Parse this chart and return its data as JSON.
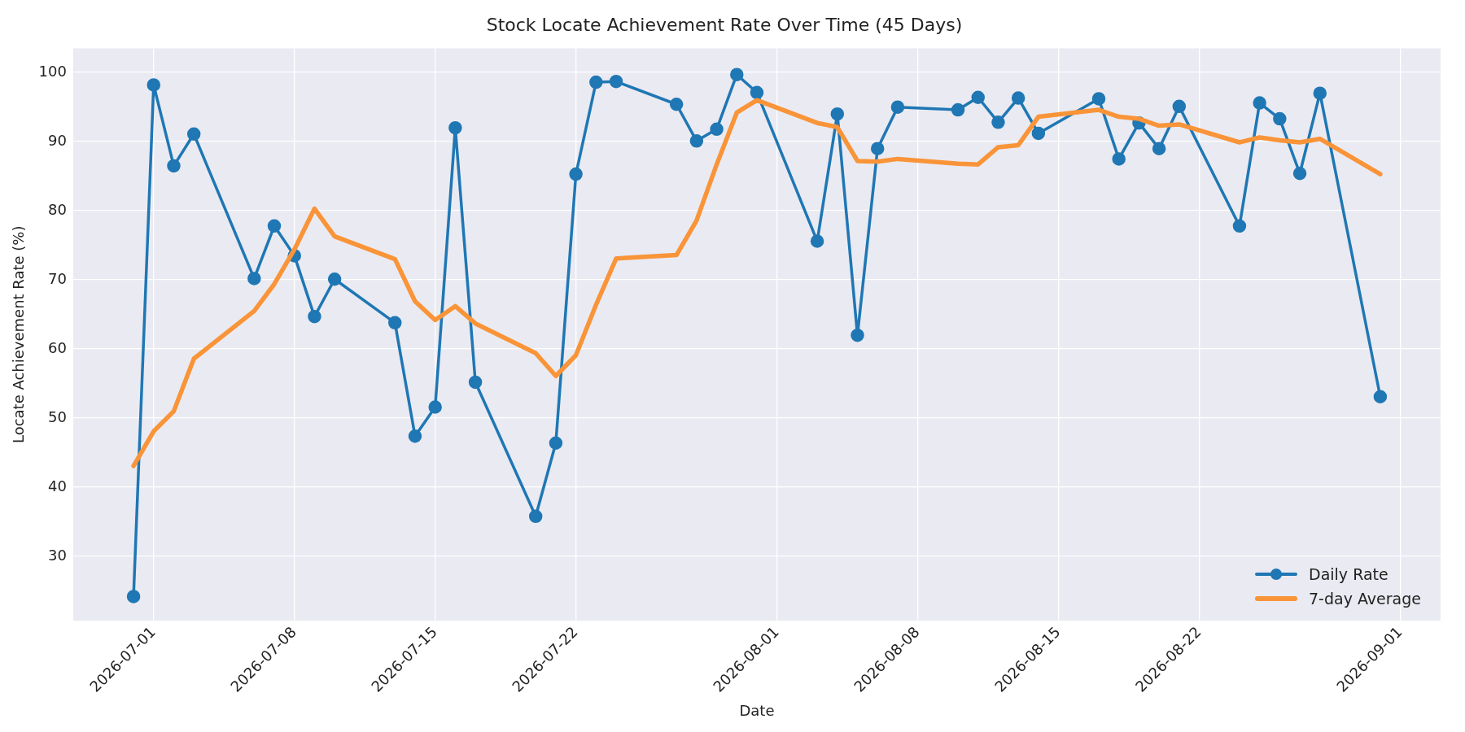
{
  "chart_data": {
    "type": "line",
    "title": "Stock Locate Achievement Rate Over Time (45 Days)",
    "xlabel": "Date",
    "ylabel": "Locate Achievement Rate (%)",
    "x": [
      "2026-06-30",
      "2026-07-01",
      "2026-07-02",
      "2026-07-03",
      "2026-07-06",
      "2026-07-07",
      "2026-07-08",
      "2026-07-09",
      "2026-07-10",
      "2026-07-13",
      "2026-07-14",
      "2026-07-15",
      "2026-07-16",
      "2026-07-17",
      "2026-07-20",
      "2026-07-21",
      "2026-07-22",
      "2026-07-23",
      "2026-07-24",
      "2026-07-27",
      "2026-07-28",
      "2026-07-29",
      "2026-07-30",
      "2026-07-31",
      "2026-08-03",
      "2026-08-04",
      "2026-08-05",
      "2026-08-06",
      "2026-08-07",
      "2026-08-10",
      "2026-08-11",
      "2026-08-12",
      "2026-08-13",
      "2026-08-14",
      "2026-08-17",
      "2026-08-18",
      "2026-08-19",
      "2026-08-20",
      "2026-08-21",
      "2026-08-24",
      "2026-08-25",
      "2026-08-26",
      "2026-08-27",
      "2026-08-28",
      "2026-08-31"
    ],
    "series": [
      {
        "name": "Daily Rate",
        "color": "#1f77b4",
        "marker": "circle",
        "values": [
          24.2,
          98.2,
          86.5,
          91.1,
          70.2,
          77.8,
          73.5,
          64.7,
          70.1,
          63.8,
          47.4,
          51.6,
          92.0,
          55.2,
          35.8,
          46.4,
          85.3,
          98.6,
          98.7,
          95.4,
          90.1,
          91.8,
          99.7,
          97.1,
          75.6,
          94.0,
          62.0,
          89.0,
          95.0,
          94.6,
          96.4,
          92.8,
          96.3,
          91.2,
          96.2,
          87.5,
          92.7,
          89.0,
          95.1,
          77.8,
          95.6,
          93.3,
          85.4,
          97.0,
          53.1
        ]
      },
      {
        "name": "7-day Average",
        "color": "#f99438",
        "marker": "none",
        "values": [
          43.1,
          48.1,
          51.0,
          58.6,
          65.5,
          69.4,
          74.4,
          80.3,
          76.3,
          73.0,
          66.9,
          64.2,
          66.2,
          63.7,
          59.4,
          56.1,
          59.1,
          66.4,
          73.1,
          73.6,
          78.6,
          86.7,
          94.2,
          96.0,
          92.7,
          92.1,
          87.2,
          87.1,
          87.5,
          86.8,
          86.7,
          89.2,
          89.5,
          93.6,
          94.6,
          93.6,
          93.3,
          92.3,
          92.5,
          89.9,
          90.6,
          90.2,
          89.9,
          90.4,
          85.3
        ]
      }
    ],
    "xlim": [
      "2026-06-27",
      "2026-09-03"
    ],
    "xticks": [
      "2026-07-01",
      "2026-07-08",
      "2026-07-15",
      "2026-07-22",
      "2026-08-01",
      "2026-08-08",
      "2026-08-15",
      "2026-08-22",
      "2026-09-01"
    ],
    "ylim": [
      20.7,
      103.5
    ],
    "yticks": [
      30,
      40,
      50,
      60,
      70,
      80,
      90,
      100
    ],
    "grid": true,
    "legend": "bottom right",
    "line_style": "solid"
  }
}
